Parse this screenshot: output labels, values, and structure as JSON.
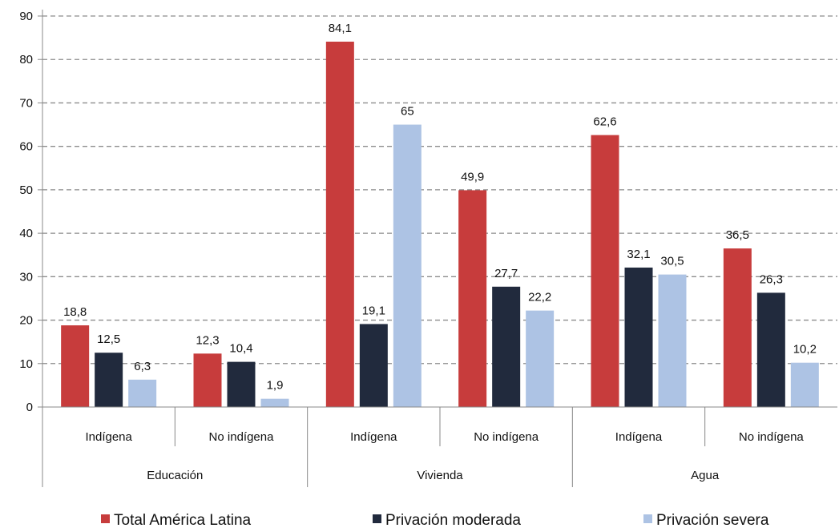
{
  "chart_data": {
    "type": "bar",
    "ylim": [
      0,
      90
    ],
    "yticks": [
      0,
      10,
      20,
      30,
      40,
      50,
      60,
      70,
      80,
      90
    ],
    "grid": true,
    "groups": [
      {
        "label": "Educación",
        "categories": [
          "Indígena",
          "No indígena"
        ]
      },
      {
        "label": "Vivienda",
        "categories": [
          "Indígena",
          "No indígena"
        ]
      },
      {
        "label": "Agua",
        "categories": [
          "Indígena",
          "No indígena"
        ]
      }
    ],
    "series": [
      {
        "name": "Total América Latina",
        "color": "#c73c3c",
        "values": [
          18.8,
          12.3,
          84.1,
          49.9,
          62.6,
          36.5
        ],
        "labels": [
          "18,8",
          "12,3",
          "84,1",
          "49,9",
          "62,6",
          "36,5"
        ]
      },
      {
        "name": "Privación moderada",
        "color": "#212a3d",
        "values": [
          12.5,
          10.4,
          19.1,
          27.7,
          32.1,
          26.3
        ],
        "labels": [
          "12,5",
          "10,4",
          "19,1",
          "27,7",
          "32,1",
          "26,3"
        ]
      },
      {
        "name": "Privación severa",
        "color": "#adc3e4",
        "values": [
          6.3,
          1.9,
          65,
          22.2,
          30.5,
          10.2
        ],
        "labels": [
          "6,3",
          "1,9",
          "65",
          "22,2",
          "30,5",
          "10,2"
        ]
      }
    ],
    "legend_position": "bottom"
  }
}
